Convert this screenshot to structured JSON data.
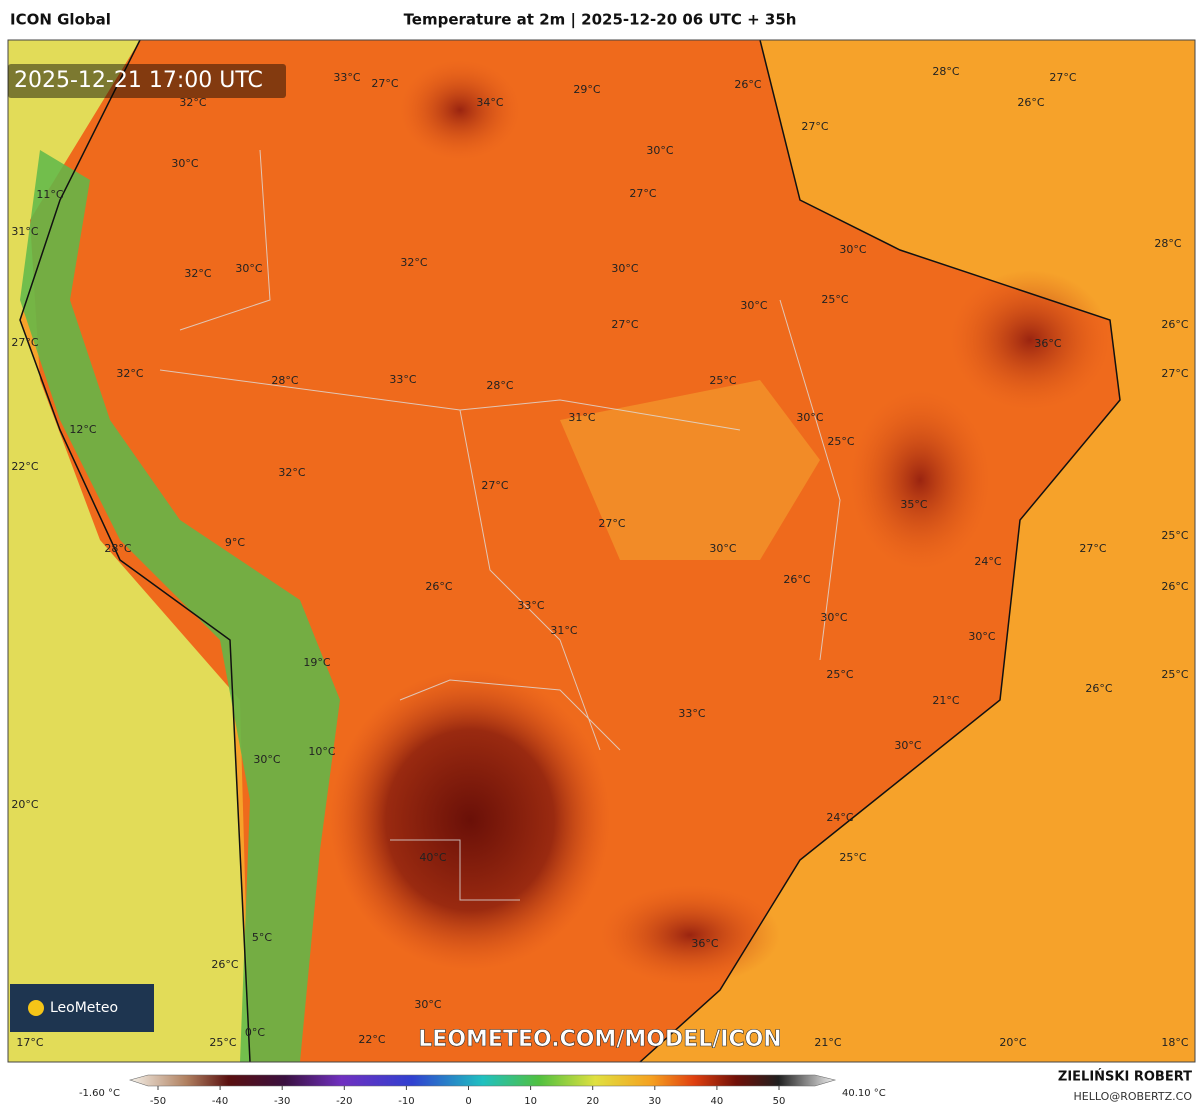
{
  "header": {
    "model": "ICON Global",
    "title": "Temperature at 2m | 2025-12-20 06 UTC + 35h"
  },
  "map": {
    "valid_time": "2025-12-21 17:00 UTC",
    "watermark": "LEOMETEO.COM/MODEL/ICON",
    "logo": "LeoMeteo",
    "labels": [
      "33°C",
      "27°C",
      "32°C",
      "34°C",
      "29°C",
      "28°C",
      "27°C",
      "26°C",
      "26°C",
      "27°C",
      "30°C",
      "30°C",
      "11°C",
      "27°C",
      "31°C",
      "28°C",
      "30°C",
      "32°C",
      "30°C",
      "32°C",
      "30°C",
      "30°C",
      "25°C",
      "26°C",
      "27°C",
      "36°C",
      "27°C",
      "32°C",
      "28°C",
      "33°C",
      "28°C",
      "25°C",
      "27°C",
      "31°C",
      "30°C",
      "12°C",
      "25°C",
      "22°C",
      "32°C",
      "27°C",
      "35°C",
      "27°C",
      "9°C",
      "28°C",
      "30°C",
      "24°C",
      "27°C",
      "25°C",
      "26°C",
      "26°C",
      "26°C",
      "33°C",
      "30°C",
      "31°C",
      "30°C",
      "19°C",
      "25°C",
      "26°C",
      "25°C",
      "21°C",
      "33°C",
      "10°C",
      "30°C",
      "30°C",
      "20°C",
      "24°C",
      "40°C",
      "25°C",
      "5°C",
      "36°C",
      "26°C",
      "30°C",
      "22°C",
      "17°C",
      "25°C",
      "0°C",
      "21°C",
      "20°C",
      "18°C"
    ]
  },
  "colorbar": {
    "min_label": "-1.60 °C",
    "max_label": "40.10 °C",
    "ticks": [
      -50,
      -40,
      -30,
      -20,
      -10,
      0,
      10,
      20,
      30,
      40,
      50
    ]
  },
  "credits": {
    "author": "ZIELIŃSKI ROBERT",
    "email": "HELLO@ROBERTZ.CO"
  }
}
